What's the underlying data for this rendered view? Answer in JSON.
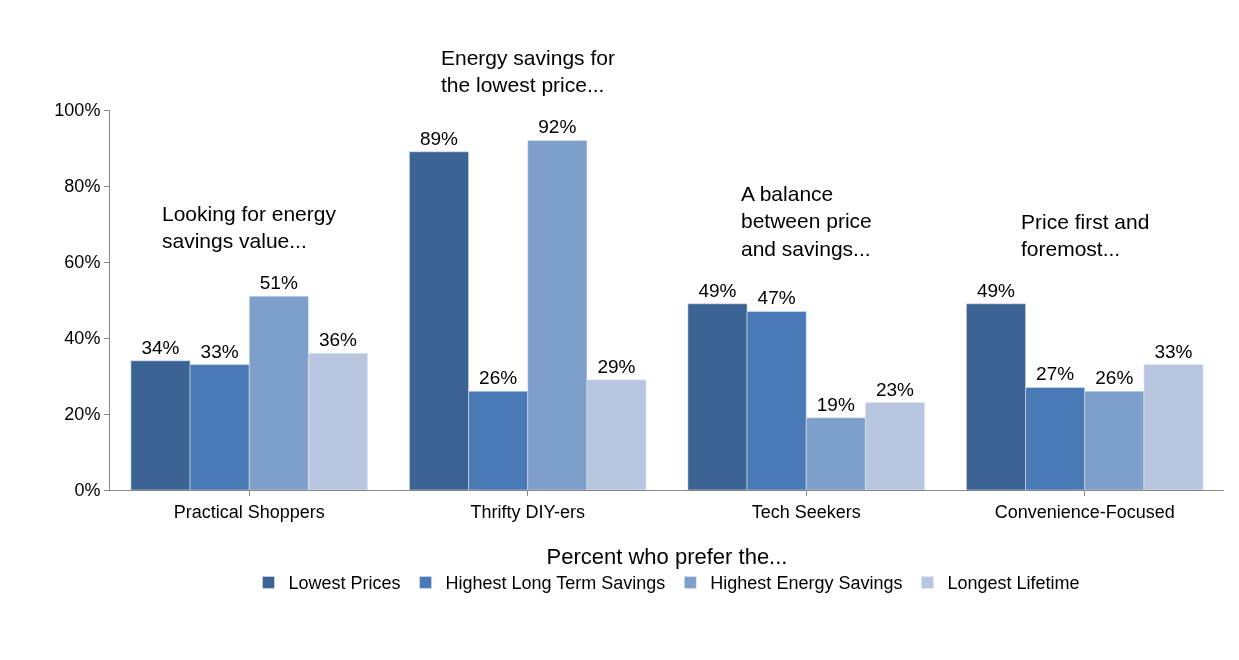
{
  "chart_data": {
    "type": "bar",
    "categories": [
      "Practical Shoppers",
      "Thrifty DIY-ers",
      "Tech Seekers",
      "Convenience-Focused"
    ],
    "series": [
      {
        "name": "Lowest Prices",
        "color": "#3b6494",
        "values": [
          34,
          89,
          49,
          49
        ],
        "value_labels": [
          "34%",
          "89%",
          "49%",
          "49%"
        ]
      },
      {
        "name": "Highest Long Term Savings",
        "color": "#4a7ab5",
        "values": [
          33,
          26,
          47,
          27
        ],
        "value_labels": [
          "33%",
          "26%",
          "47%",
          "27%"
        ]
      },
      {
        "name": "Highest Energy Savings",
        "color": "#7f9fcb",
        "values": [
          51,
          92,
          19,
          26
        ],
        "value_labels": [
          "51%",
          "92%",
          "19%",
          "26%"
        ]
      },
      {
        "name": "Longest Lifetime",
        "color": "#b8c6df",
        "values": [
          36,
          29,
          23,
          33
        ],
        "value_labels": [
          "36%",
          "29%",
          "23%",
          "33%"
        ]
      }
    ],
    "ylim": [
      0,
      100
    ],
    "yticks": [
      {
        "value": 0,
        "label": "0%"
      },
      {
        "value": 20,
        "label": "20%"
      },
      {
        "value": 40,
        "label": "40%"
      },
      {
        "value": 60,
        "label": "60%"
      },
      {
        "value": 80,
        "label": "80%"
      },
      {
        "value": 100,
        "label": "100%"
      }
    ],
    "legend_title": "Percent who prefer the...",
    "legend": "bottom",
    "annotations": [
      "Looking for energy\nsavings value...",
      "Energy savings for\nthe lowest price...",
      "A balance\nbetween price\nand savings...",
      "Price first and\nforemost..."
    ]
  }
}
